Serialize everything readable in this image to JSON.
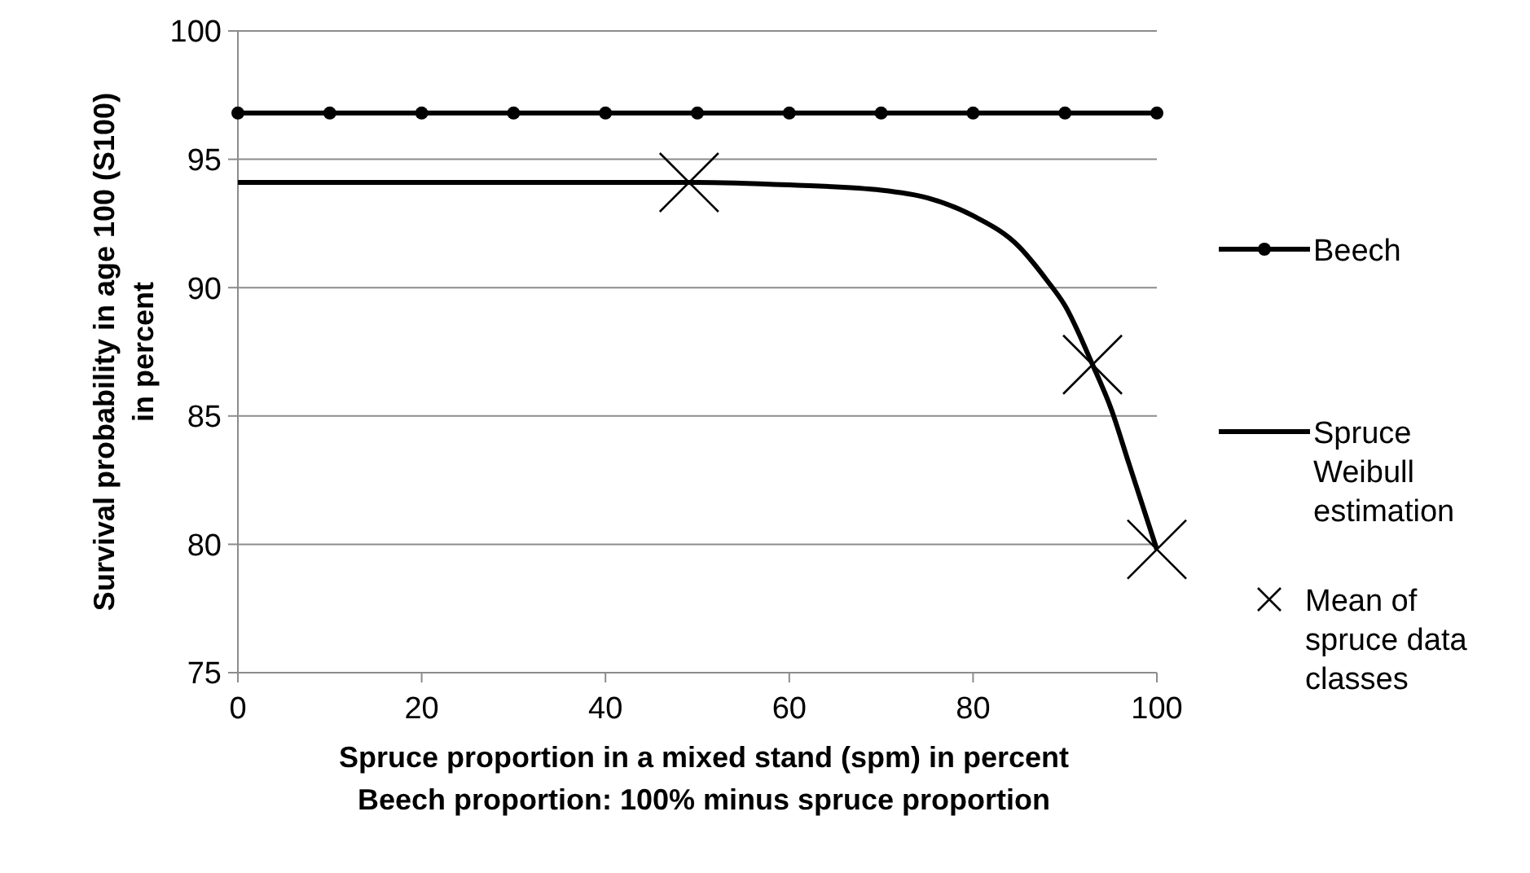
{
  "chart_data": {
    "type": "line",
    "xlabel": "Spruce proportion in a mixed stand (spm) in percent\nBeech proportion: 100% minus spruce proportion",
    "ylabel": "Survival probability in age 100 (S100)\nin percent",
    "xlim": [
      0,
      100
    ],
    "xticks": [
      0,
      20,
      40,
      60,
      80,
      100
    ],
    "ylim": [
      75,
      100
    ],
    "yticks": [
      75,
      80,
      85,
      90,
      95,
      100
    ],
    "grid": "y",
    "legend": "right",
    "series": [
      {
        "name": "Beech",
        "color": "#000000",
        "marker": "circle",
        "x": [
          0,
          10,
          20,
          30,
          40,
          50,
          60,
          70,
          80,
          90,
          100
        ],
        "values": [
          96.8,
          96.8,
          96.8,
          96.8,
          96.8,
          96.8,
          96.8,
          96.8,
          96.8,
          96.8,
          96.8
        ]
      },
      {
        "name": "Spruce Weibull estimation",
        "color": "#000000",
        "marker": "none",
        "x": [
          0,
          50,
          60,
          70,
          75,
          80,
          85,
          88,
          90,
          93,
          95,
          97,
          100
        ],
        "values": [
          94.1,
          94.1,
          94.0,
          93.8,
          93.5,
          92.8,
          91.6,
          90.3,
          89.3,
          87.0,
          85.3,
          83.1,
          79.8
        ]
      },
      {
        "name": "Mean of spruce data classes",
        "type": "scatter",
        "color": "#000000",
        "marker": "cross",
        "x": [
          49.1,
          93,
          100
        ],
        "values": [
          94.1,
          87.0,
          79.8
        ]
      }
    ]
  }
}
